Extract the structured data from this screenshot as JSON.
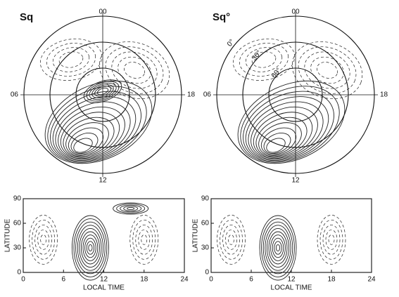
{
  "polar_panels": [
    {
      "label": "Sq",
      "hours": [
        "00",
        "06",
        "12",
        "18"
      ]
    },
    {
      "label": "Sq°",
      "hours": [
        "00",
        "06",
        "12",
        "18"
      ],
      "latitude_labels": [
        "0°",
        "30°",
        "60°"
      ]
    }
  ],
  "cartesian_panels": [
    {
      "xlabel": "LOCAL TIME",
      "ylabel": "LATITUDE",
      "xlim": [
        0,
        24
      ],
      "ylim": [
        0,
        90
      ],
      "xticks": [
        0,
        6,
        12,
        18,
        24
      ],
      "yticks": [
        0,
        30,
        60,
        90
      ]
    },
    {
      "xlabel": "LOCAL TIME",
      "ylabel": "LATITUDE",
      "xlim": [
        0,
        24
      ],
      "ylim": [
        0,
        90
      ],
      "xticks": [
        0,
        6,
        12,
        18,
        24
      ],
      "yticks": [
        0,
        30,
        60,
        90
      ]
    }
  ]
}
